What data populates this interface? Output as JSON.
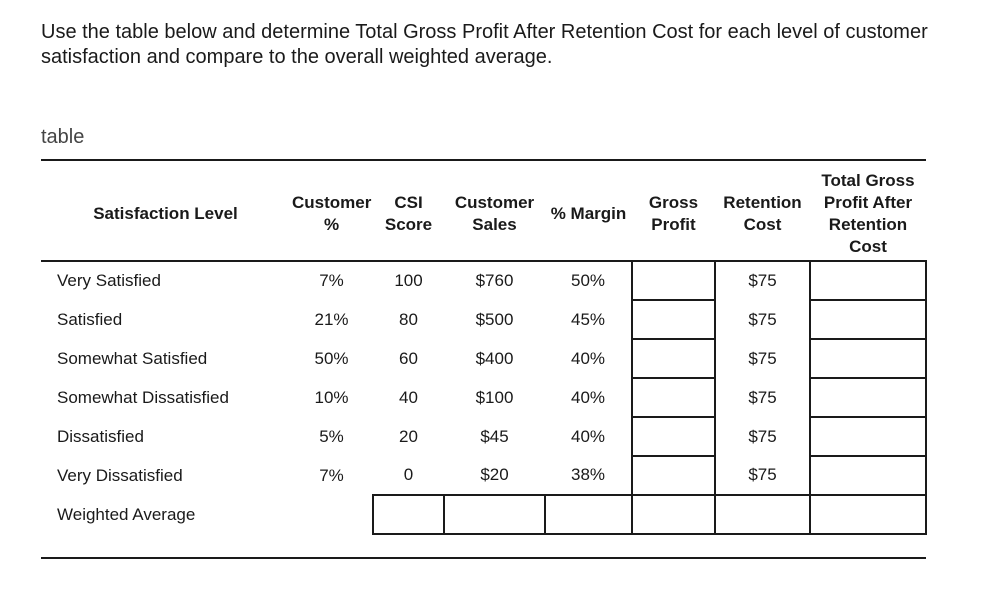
{
  "question": "Use the table below and determine Total Gross Profit After Retention Cost for each level of customer satisfaction and compare to the overall weighted average.",
  "caption": "table",
  "table": {
    "headers": [
      "Satisfaction Level",
      "Customer %",
      "CSI Score",
      "Customer Sales",
      "% Margin",
      "Gross Profit",
      "Retention Cost",
      "Total Gross Profit After Retention Cost"
    ],
    "rows": [
      {
        "level": "Very Satisfied",
        "customer_pct": "7%",
        "csi": "100",
        "sales": "$760",
        "margin": "50%",
        "gross_profit": "",
        "retention": "$75",
        "total": ""
      },
      {
        "level": "Satisfied",
        "customer_pct": "21%",
        "csi": "80",
        "sales": "$500",
        "margin": "45%",
        "gross_profit": "",
        "retention": "$75",
        "total": ""
      },
      {
        "level": "Somewhat Satisfied",
        "customer_pct": "50%",
        "csi": "60",
        "sales": "$400",
        "margin": "40%",
        "gross_profit": "",
        "retention": "$75",
        "total": ""
      },
      {
        "level": "Somewhat Dissatisfied",
        "customer_pct": "10%",
        "csi": "40",
        "sales": "$100",
        "margin": "40%",
        "gross_profit": "",
        "retention": "$75",
        "total": ""
      },
      {
        "level": "Dissatisfied",
        "customer_pct": "5%",
        "csi": "20",
        "sales": "$45",
        "margin": "40%",
        "gross_profit": "",
        "retention": "$75",
        "total": ""
      },
      {
        "level": "Very Dissatisfied",
        "customer_pct": "7%",
        "csi": "0",
        "sales": "$20",
        "margin": "38%",
        "gross_profit": "",
        "retention": "$75",
        "total": ""
      }
    ],
    "weighted_average_label": "Weighted Average"
  }
}
